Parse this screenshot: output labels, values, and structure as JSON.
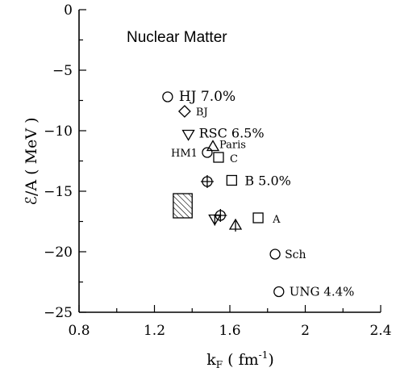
{
  "chart_data": {
    "type": "scatter",
    "title": "Nuclear Matter",
    "xlabel": "k_F (fm^-1)",
    "xlabel_parts": {
      "main": "k",
      "sub": "F",
      "open": "( fm",
      "sup": "-1",
      "close": ")"
    },
    "ylabel": "ℰ/A ( MeV )",
    "xlim": [
      0.8,
      2.4
    ],
    "ylim": [
      -25,
      0
    ],
    "xticks": [
      0.8,
      1.2,
      1.6,
      2.0,
      2.4
    ],
    "xtick_labels": [
      "0.8",
      "1.2",
      "1.6",
      "2",
      "2.4"
    ],
    "yticks": [
      0,
      -5,
      -10,
      -15,
      -20,
      -25
    ],
    "ytick_labels": [
      "0",
      "−5",
      "−10",
      "−15",
      "−20",
      "−25"
    ],
    "grid": false,
    "points": [
      {
        "marker": "circle",
        "x": 1.27,
        "y": -7.2,
        "label": "HJ  7.0%"
      },
      {
        "marker": "diamond",
        "x": 1.36,
        "y": -8.4,
        "label": "BJ"
      },
      {
        "marker": "triangle-down",
        "x": 1.38,
        "y": -10.3,
        "label": "RSC  6.5%"
      },
      {
        "marker": "triangle-up",
        "x": 1.51,
        "y": -11.3,
        "label": "Paris"
      },
      {
        "marker": "circle",
        "x": 1.48,
        "y": -11.8,
        "label": "HM1"
      },
      {
        "marker": "square",
        "x": 1.54,
        "y": -12.2,
        "label": "C"
      },
      {
        "marker": "circle-plus",
        "x": 1.48,
        "y": -14.2,
        "label": ""
      },
      {
        "marker": "square",
        "x": 1.61,
        "y": -14.1,
        "label": "B  5.0%"
      },
      {
        "marker": "triangle-down",
        "x": 1.52,
        "y": -17.3,
        "label": ""
      },
      {
        "marker": "circle-plus",
        "x": 1.55,
        "y": -17.0,
        "label": ""
      },
      {
        "marker": "triangle-up",
        "x": 1.63,
        "y": -17.8,
        "label": ""
      },
      {
        "marker": "square",
        "x": 1.75,
        "y": -17.2,
        "label": "A"
      },
      {
        "marker": "circle",
        "x": 1.84,
        "y": -20.2,
        "label": "Sch"
      },
      {
        "marker": "circle",
        "x": 1.86,
        "y": -23.3,
        "label": "UNG  4.4%"
      }
    ],
    "region": {
      "shape": "hatched-rectangle",
      "x": [
        1.3,
        1.4
      ],
      "y": [
        -15.2,
        -17.2
      ]
    }
  }
}
